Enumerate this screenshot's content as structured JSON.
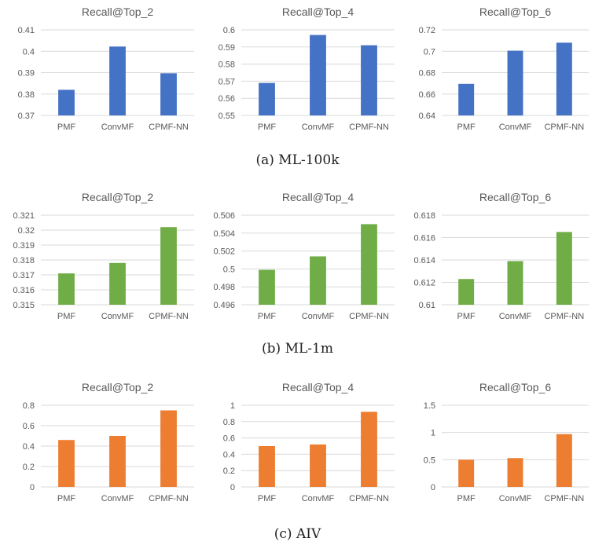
{
  "captions": {
    "a": "(a) ML-100k",
    "b": "(b) ML-1m",
    "c": "(c) AIV"
  },
  "colors": {
    "a": "#4472C4",
    "b": "#70AD47",
    "c": "#ED7D31"
  },
  "chart_data": [
    {
      "type": "bar",
      "group": "a",
      "title": "Recall@Top_2",
      "categories": [
        "PMF",
        "ConvMF",
        "CPMF-NN"
      ],
      "values": [
        0.382,
        0.4022,
        0.3897
      ],
      "ylim": [
        0.37,
        0.41
      ],
      "yticks": [
        "0.41",
        "0.4",
        "0.39",
        "0.38",
        "0.37"
      ],
      "xlabel": "",
      "ylabel": ""
    },
    {
      "type": "bar",
      "group": "a",
      "title": "Recall@Top_4",
      "categories": [
        "PMF",
        "ConvMF",
        "CPMF-NN"
      ],
      "values": [
        0.569,
        0.597,
        0.591
      ],
      "ylim": [
        0.55,
        0.6
      ],
      "yticks": [
        "0.6",
        "0.59",
        "0.58",
        "0.57",
        "0.56",
        "0.55"
      ],
      "xlabel": "",
      "ylabel": ""
    },
    {
      "type": "bar",
      "group": "a",
      "title": "Recall@Top_6",
      "categories": [
        "PMF",
        "ConvMF",
        "CPMF-NN"
      ],
      "values": [
        0.6695,
        0.7005,
        0.708
      ],
      "ylim": [
        0.64,
        0.72
      ],
      "yticks": [
        "0.72",
        "0.7",
        "0.68",
        "0.66",
        "0.64"
      ],
      "xlabel": "",
      "ylabel": ""
    },
    {
      "type": "bar",
      "group": "b",
      "title": "Recall@Top_2",
      "categories": [
        "PMF",
        "ConvMF",
        "CPMF-NN"
      ],
      "values": [
        0.3171,
        0.3178,
        0.3202
      ],
      "ylim": [
        0.315,
        0.321
      ],
      "yticks": [
        "0.321",
        "0.32",
        "0.319",
        "0.318",
        "0.317",
        "0.316",
        "0.315"
      ],
      "xlabel": "",
      "ylabel": ""
    },
    {
      "type": "bar",
      "group": "b",
      "title": "Recall@Top_4",
      "categories": [
        "PMF",
        "ConvMF",
        "CPMF-NN"
      ],
      "values": [
        0.4999,
        0.5014,
        0.505
      ],
      "ylim": [
        0.496,
        0.506
      ],
      "yticks": [
        "0.506",
        "0.504",
        "0.502",
        "0.5",
        "0.498",
        "0.496"
      ],
      "xlabel": "",
      "ylabel": ""
    },
    {
      "type": "bar",
      "group": "b",
      "title": "Recall@Top_6",
      "categories": [
        "PMF",
        "ConvMF",
        "CPMF-NN"
      ],
      "values": [
        0.6123,
        0.6139,
        0.6165
      ],
      "ylim": [
        0.61,
        0.618
      ],
      "yticks": [
        "0.618",
        "0.616",
        "0.614",
        "0.612",
        "0.61"
      ],
      "xlabel": "",
      "ylabel": ""
    },
    {
      "type": "bar",
      "group": "c",
      "title": "Recall@Top_2",
      "categories": [
        "PMF",
        "ConvMF",
        "CPMF-NN"
      ],
      "values": [
        0.46,
        0.5,
        0.75
      ],
      "ylim": [
        0,
        0.8
      ],
      "yticks": [
        "0.8",
        "0.6",
        "0.4",
        "0.2",
        "0"
      ],
      "xlabel": "",
      "ylabel": ""
    },
    {
      "type": "bar",
      "group": "c",
      "title": "Recall@Top_4",
      "categories": [
        "PMF",
        "ConvMF",
        "CPMF-NN"
      ],
      "values": [
        0.5,
        0.52,
        0.92
      ],
      "ylim": [
        0,
        1
      ],
      "yticks": [
        "1",
        "0.8",
        "0.6",
        "0.4",
        "0.2",
        "0"
      ],
      "xlabel": "",
      "ylabel": ""
    },
    {
      "type": "bar",
      "group": "c",
      "title": "Recall@Top_6",
      "categories": [
        "PMF",
        "ConvMF",
        "CPMF-NN"
      ],
      "values": [
        0.5,
        0.53,
        0.97
      ],
      "ylim": [
        0,
        1.5
      ],
      "yticks": [
        "1.5",
        "1",
        "0.5",
        "0"
      ],
      "xlabel": "",
      "ylabel": ""
    }
  ]
}
